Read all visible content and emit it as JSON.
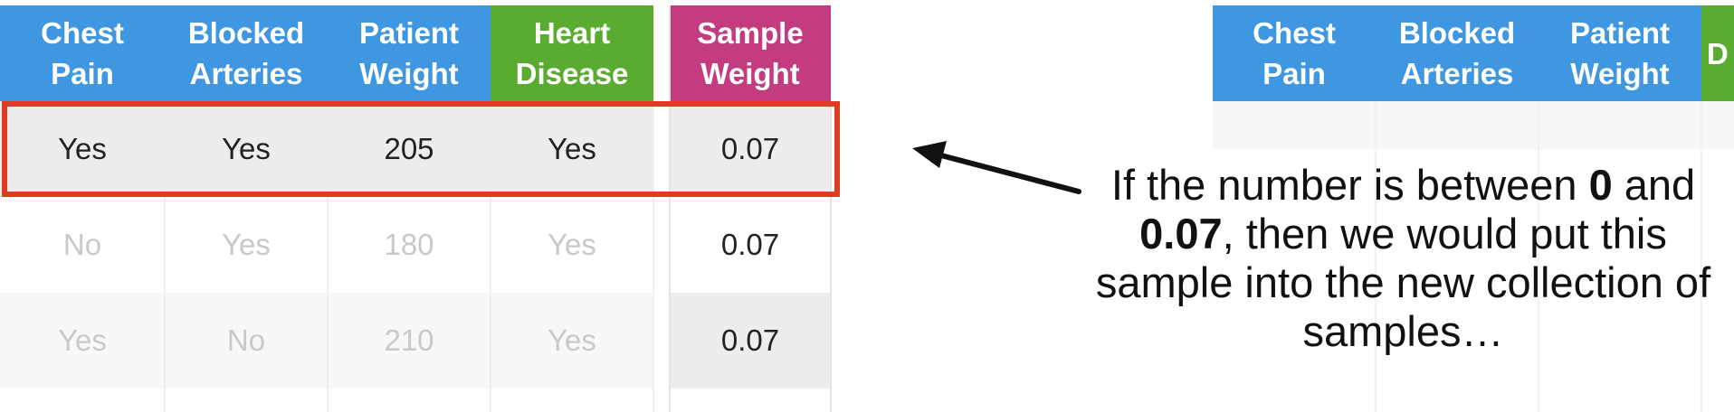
{
  "colors": {
    "header_blue": "#3f97e2",
    "header_green": "#5aac30",
    "header_magenta": "#c43c80",
    "highlight_red": "#dc3c22",
    "row_gray": "#ededed",
    "faded_text": "#c9c9c9"
  },
  "table": {
    "headers": [
      {
        "line1": "Chest",
        "line2": "Pain"
      },
      {
        "line1": "Blocked",
        "line2": "Arteries"
      },
      {
        "line1": "Patient",
        "line2": "Weight"
      },
      {
        "line1": "Heart",
        "line2": "Disease"
      }
    ],
    "weight_header": {
      "line1": "Sample",
      "line2": "Weight"
    },
    "rows": [
      {
        "cells": [
          "Yes",
          "Yes",
          "205",
          "Yes"
        ],
        "weight": "0.07"
      },
      {
        "cells": [
          "No",
          "Yes",
          "180",
          "Yes"
        ],
        "weight": "0.07"
      },
      {
        "cells": [
          "Yes",
          "No",
          "210",
          "Yes"
        ],
        "weight": "0.07"
      }
    ]
  },
  "new_table": {
    "headers": [
      {
        "line1": "Chest",
        "line2": "Pain"
      },
      {
        "line1": "Blocked",
        "line2": "Arteries"
      },
      {
        "line1": "Patient",
        "line2": "Weight"
      },
      {
        "line1": "",
        "line2": "D"
      }
    ]
  },
  "caption": {
    "t1": "If the number is between ",
    "b1": "0",
    "t2": "and ",
    "b2": "0.07",
    "t3": ", then we would put this sample into the new collection of samples…"
  }
}
